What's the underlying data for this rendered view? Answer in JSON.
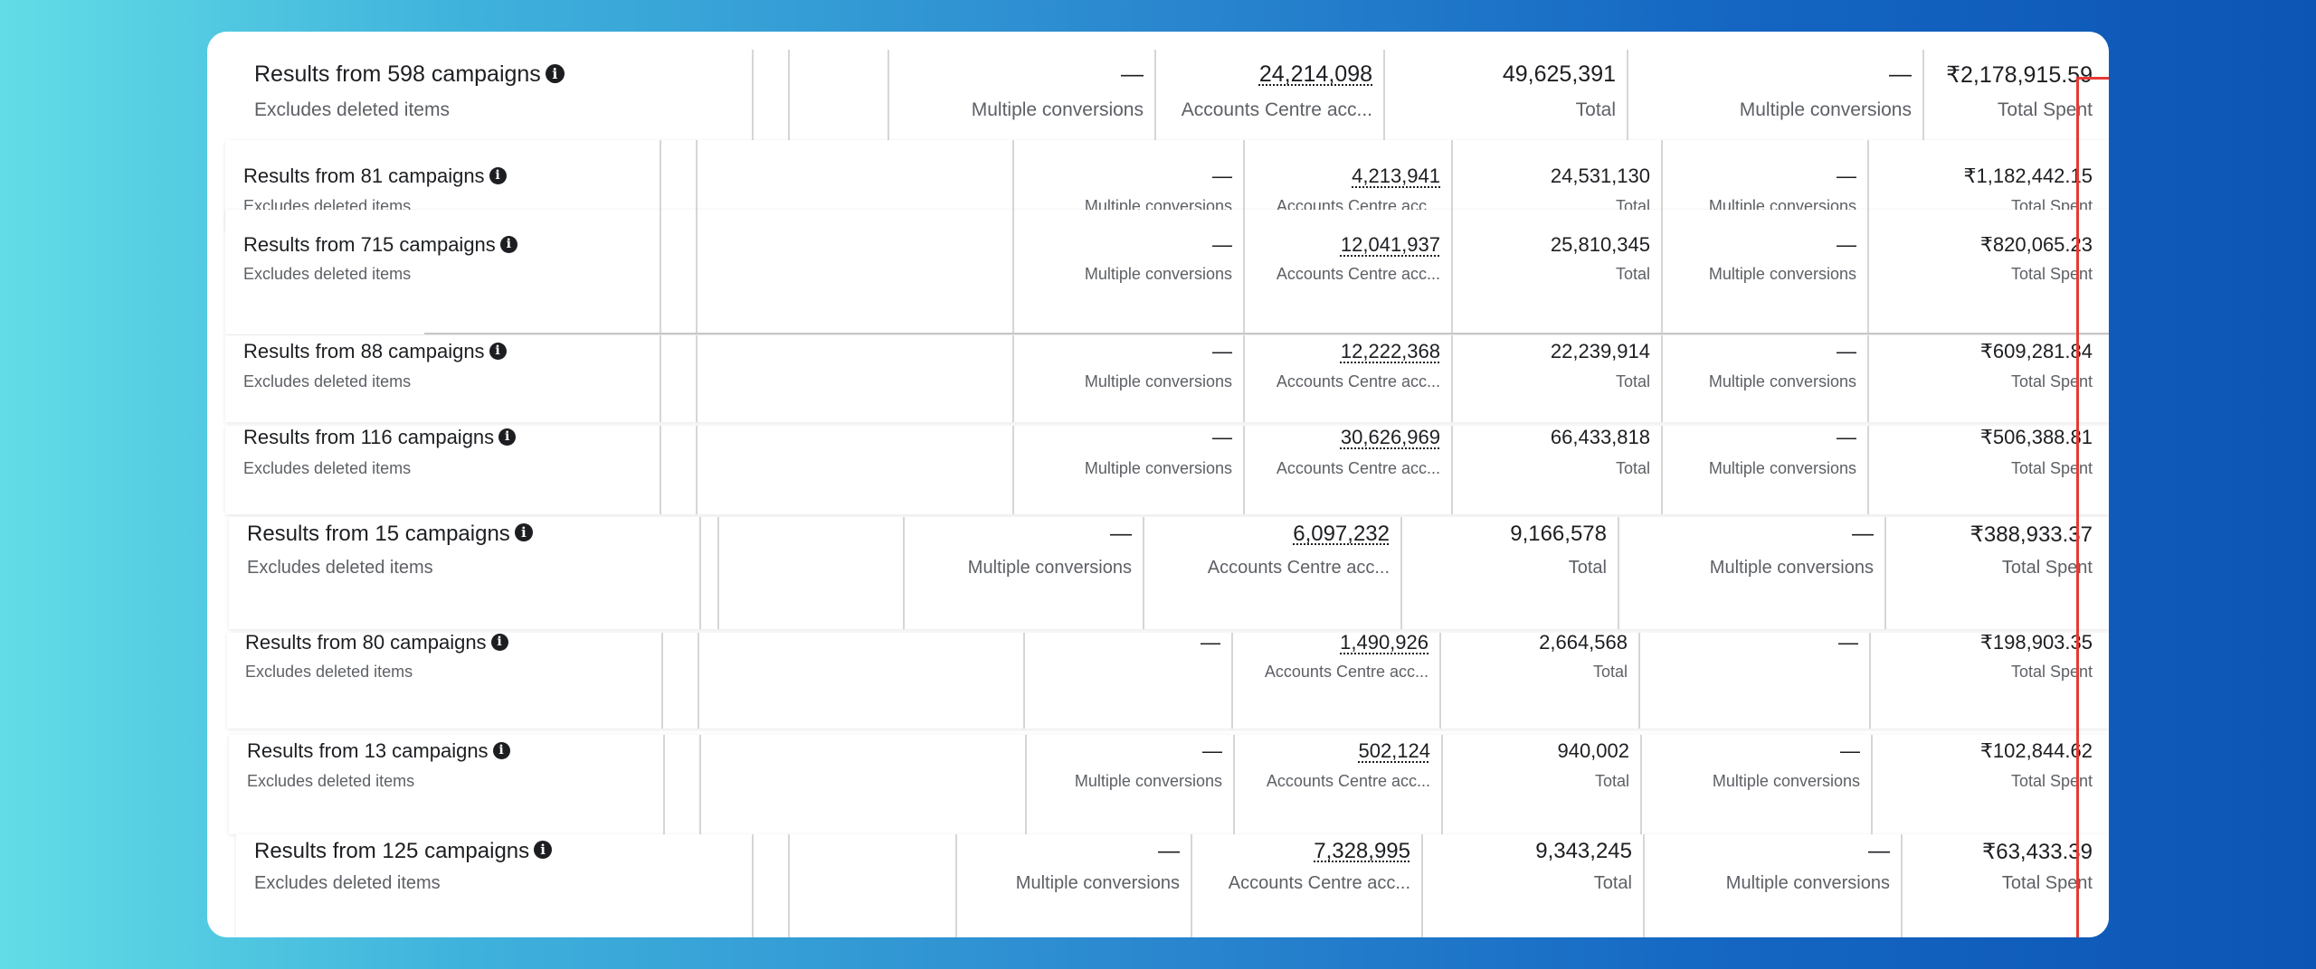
{
  "rows": [
    {
      "title": "Results from 598 campaigns",
      "subtitle": "Excludes deleted items",
      "c1": "—",
      "c1_label": "Multiple conversions",
      "c2": "24,214,098",
      "c2_label": "Accounts Centre acc...",
      "c3": "49,625,391",
      "c3_label": "Total",
      "c4": "—",
      "c4_label": "Multiple conversions",
      "spent": "₹2,178,915.59",
      "spent_label": "Total Spent"
    },
    {
      "title": "Results from 81 campaigns",
      "subtitle": "Excludes deleted items",
      "c1": "—",
      "c1_label": "Multiple conversions",
      "c2": "4,213,941",
      "c2_label": "Accounts Centre acc...",
      "c3": "24,531,130",
      "c3_label": "Total",
      "c4": "—",
      "c4_label": "Multiple conversions",
      "spent": "₹1,182,442.15",
      "spent_label": "Total Spent"
    },
    {
      "title": "Results from 715 campaigns",
      "subtitle": "Excludes deleted items",
      "c1": "—",
      "c1_label": "Multiple conversions",
      "c2": "12,041,937",
      "c2_label": "Accounts Centre acc...",
      "c3": "25,810,345",
      "c3_label": "Total",
      "c4": "—",
      "c4_label": "Multiple conversions",
      "spent": "₹820,065.23",
      "spent_label": "Total Spent"
    },
    {
      "title": "Results from 88 campaigns",
      "subtitle": "Excludes deleted items",
      "c1": "—",
      "c1_label": "Multiple conversions",
      "c2": "12,222,368",
      "c2_label": "Accounts Centre acc...",
      "c3": "22,239,914",
      "c3_label": "Total",
      "c4": "—",
      "c4_label": "Multiple conversions",
      "spent": "₹609,281.84",
      "spent_label": "Total Spent"
    },
    {
      "title": "Results from 116 campaigns",
      "subtitle": "Excludes deleted items",
      "c1": "—",
      "c1_label": "Multiple conversions",
      "c2": "30,626,969",
      "c2_label": "Accounts Centre acc...",
      "c3": "66,433,818",
      "c3_label": "Total",
      "c4": "—",
      "c4_label": "Multiple conversions",
      "spent": "₹506,388.81",
      "spent_label": "Total Spent"
    },
    {
      "title": "Results from 15 campaigns",
      "subtitle": "Excludes deleted items",
      "c1": "—",
      "c1_label": "Multiple conversions",
      "c2": "6,097,232",
      "c2_label": "Accounts Centre acc...",
      "c3": "9,166,578",
      "c3_label": "Total",
      "c4": "—",
      "c4_label": "Multiple conversions",
      "spent": "₹388,933.37",
      "spent_label": "Total Spent"
    },
    {
      "title": "Results from 80 campaigns",
      "subtitle": "Excludes deleted items",
      "c1": "—",
      "c1_label": "",
      "c2": "1,490,926",
      "c2_label": "Accounts Centre acc...",
      "c3": "2,664,568",
      "c3_label": "Total",
      "c4": "—",
      "c4_label": "",
      "spent": "₹198,903.35",
      "spent_label": "Total Spent"
    },
    {
      "title": "Results from 13 campaigns",
      "subtitle": "Excludes deleted items",
      "c1": "—",
      "c1_label": "Multiple conversions",
      "c2": "502,124",
      "c2_label": "Accounts Centre acc...",
      "c3": "940,002",
      "c3_label": "Total",
      "c4": "—",
      "c4_label": "Multiple conversions",
      "spent": "₹102,844.62",
      "spent_label": "Total Spent"
    },
    {
      "title": "Results from 125 campaigns",
      "subtitle": "Excludes deleted items",
      "c1": "—",
      "c1_label": "Multiple conversions",
      "c2": "7,328,995",
      "c2_label": "Accounts Centre acc...",
      "c3": "9,343,245",
      "c3_label": "Total",
      "c4": "—",
      "c4_label": "Multiple conversions",
      "spent": "₹63,433.39",
      "spent_label": "Total Spent"
    }
  ],
  "info_icon": "info-circle-icon",
  "highlight_color": "#e53935"
}
